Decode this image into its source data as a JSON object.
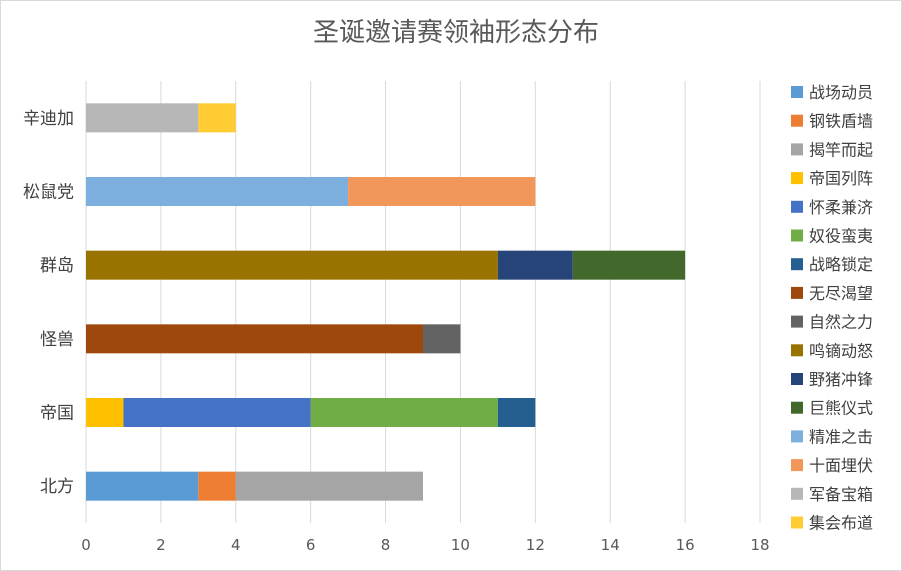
{
  "chart_data": {
    "type": "bar",
    "orientation": "horizontal",
    "stacked": true,
    "title": "圣诞邀请赛领袖形态分布",
    "xlabel": "",
    "ylabel": "",
    "xlim": [
      0,
      18
    ],
    "xticks": [
      0,
      2,
      4,
      6,
      8,
      10,
      12,
      14,
      16,
      18
    ],
    "grid": true,
    "legend_position": "right",
    "categories": [
      "辛迪加",
      "松鼠党",
      "群岛",
      "怪兽",
      "帝国",
      "北方"
    ],
    "series": [
      {
        "name": "战场动员",
        "color": "#5b9bd5",
        "values": [
          0,
          0,
          0,
          0,
          0,
          3
        ]
      },
      {
        "name": "钢铁盾墙",
        "color": "#ed7d31",
        "values": [
          0,
          0,
          0,
          0,
          0,
          1
        ]
      },
      {
        "name": "揭竿而起",
        "color": "#a5a5a5",
        "values": [
          0,
          0,
          0,
          0,
          0,
          5
        ]
      },
      {
        "name": "帝国列阵",
        "color": "#ffc000",
        "values": [
          0,
          0,
          0,
          0,
          1,
          0
        ]
      },
      {
        "name": "怀柔兼济",
        "color": "#4472c4",
        "values": [
          0,
          0,
          0,
          0,
          5,
          0
        ]
      },
      {
        "name": "奴役蛮夷",
        "color": "#70ad47",
        "values": [
          0,
          0,
          0,
          0,
          5,
          0
        ]
      },
      {
        "name": "战略锁定",
        "color": "#255e91",
        "values": [
          0,
          0,
          0,
          0,
          1,
          0
        ]
      },
      {
        "name": "无尽渴望",
        "color": "#9e480e",
        "values": [
          0,
          0,
          0,
          9,
          0,
          0
        ]
      },
      {
        "name": "自然之力",
        "color": "#636363",
        "values": [
          0,
          0,
          0,
          1,
          0,
          0
        ]
      },
      {
        "name": "鸣镝动怒",
        "color": "#997300",
        "values": [
          0,
          0,
          11,
          0,
          0,
          0
        ]
      },
      {
        "name": "野猪冲锋",
        "color": "#264478",
        "values": [
          0,
          0,
          2,
          0,
          0,
          0
        ]
      },
      {
        "name": "巨熊仪式",
        "color": "#43682b",
        "values": [
          0,
          0,
          3,
          0,
          0,
          0
        ]
      },
      {
        "name": "精准之击",
        "color": "#7cafdd",
        "values": [
          0,
          7,
          0,
          0,
          0,
          0
        ]
      },
      {
        "name": "十面埋伏",
        "color": "#f1975a",
        "values": [
          0,
          5,
          0,
          0,
          0,
          0
        ]
      },
      {
        "name": "军备宝箱",
        "color": "#b7b7b7",
        "values": [
          3,
          0,
          0,
          0,
          0,
          0
        ]
      },
      {
        "name": "集会布道",
        "color": "#ffcd33",
        "values": [
          1,
          0,
          0,
          0,
          0,
          0
        ]
      }
    ]
  }
}
